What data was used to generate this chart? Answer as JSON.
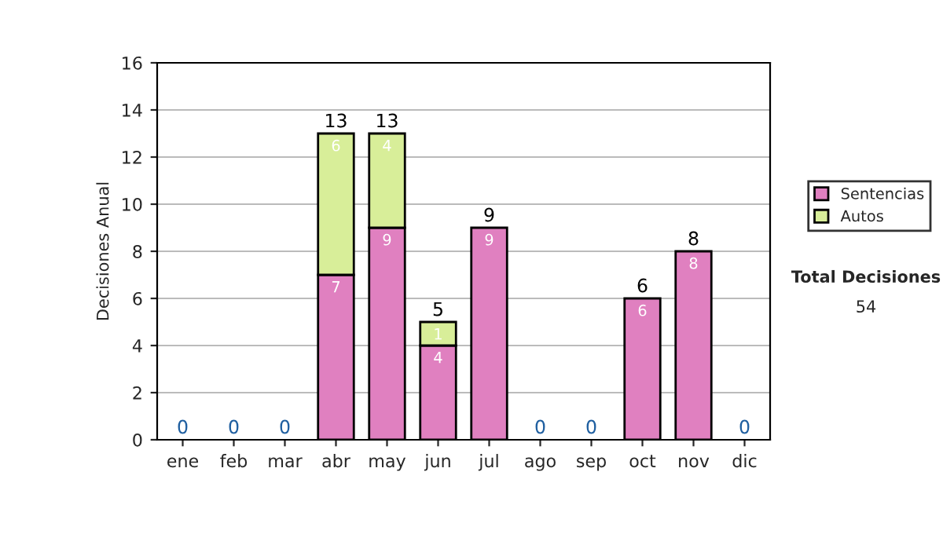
{
  "chart_data": {
    "type": "bar",
    "stacked": true,
    "ylabel": "Decisiones Anual",
    "categories": [
      "ene",
      "feb",
      "mar",
      "abr",
      "may",
      "jun",
      "jul",
      "ago",
      "sep",
      "oct",
      "nov",
      "dic"
    ],
    "series": [
      {
        "name": "Sentencias",
        "color": "#e080c0",
        "values": [
          0,
          0,
          0,
          7,
          9,
          4,
          9,
          0,
          0,
          6,
          8,
          0
        ],
        "value_labels": [
          null,
          null,
          null,
          "7",
          "9",
          "4",
          "9",
          null,
          null,
          "6",
          "8",
          null
        ]
      },
      {
        "name": "Autos",
        "color": "#d8ee99",
        "values": [
          0,
          0,
          0,
          6,
          4,
          1,
          0,
          0,
          0,
          0,
          0,
          0
        ],
        "value_labels": [
          null,
          null,
          null,
          "6",
          "4",
          "1",
          null,
          null,
          null,
          null,
          null,
          null
        ]
      }
    ],
    "totals": [
      "0",
      "0",
      "0",
      "13",
      "13",
      "5",
      "9",
      "0",
      "0",
      "6",
      "8",
      "0"
    ],
    "ylim": [
      0,
      16
    ],
    "yticks": [
      0,
      2,
      4,
      6,
      8,
      10,
      12,
      14,
      16
    ],
    "grid": "y",
    "legend": "right",
    "annotations": [
      "Total Decisiones",
      "54"
    ]
  }
}
